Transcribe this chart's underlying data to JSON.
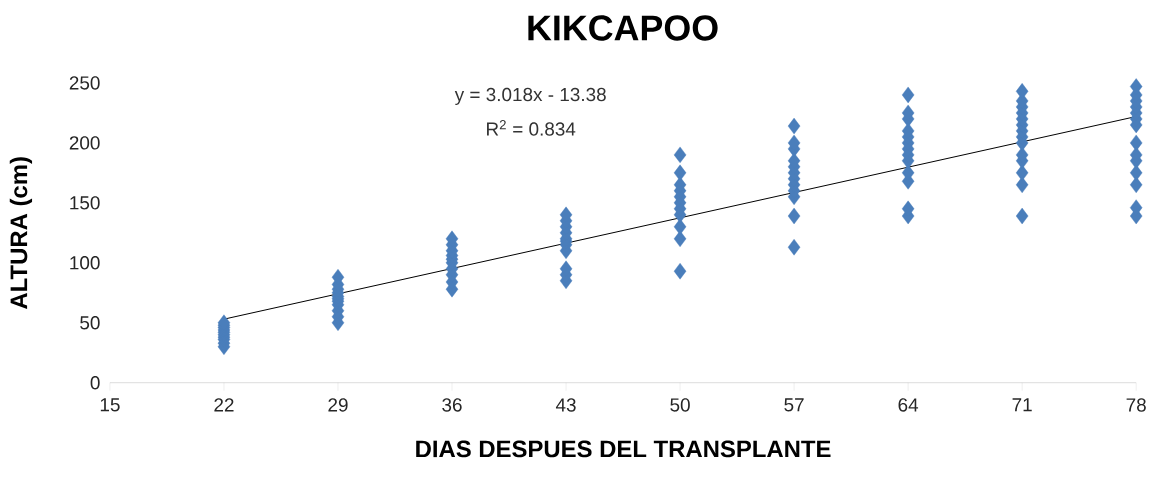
{
  "chart_data": {
    "type": "scatter",
    "title": "KIKCAPOO",
    "xlabel": "DIAS DESPUES DEL TRANSPLANTE",
    "ylabel": "ALTURA (cm)",
    "annotations": [
      "y = 3.018x - 13.38",
      "R$^{2}$ = 0.834"
    ],
    "xlim": [
      15,
      78
    ],
    "xticks": [
      15,
      22,
      29,
      36,
      43,
      50,
      57,
      64,
      71,
      78
    ],
    "ylim": [
      0,
      250
    ],
    "yticks": [
      0,
      50,
      100,
      150,
      200,
      250
    ],
    "marker": "diamond",
    "series": [
      {
        "color": "#4a7ebb",
        "x": [
          22,
          22,
          22,
          22,
          22,
          22,
          22,
          22,
          22,
          22,
          29,
          29,
          29,
          29,
          29,
          29,
          29,
          29,
          29,
          29,
          29,
          36,
          36,
          36,
          36,
          36,
          36,
          36,
          36,
          36,
          36,
          43,
          43,
          43,
          43,
          43,
          43,
          43,
          43,
          43,
          43,
          43,
          50,
          50,
          50,
          50,
          50,
          50,
          50,
          50,
          50,
          50,
          50,
          57,
          57,
          57,
          57,
          57,
          57,
          57,
          57,
          57,
          57,
          57,
          57,
          64,
          64,
          64,
          64,
          64,
          64,
          64,
          64,
          64,
          64,
          64,
          64,
          64,
          71,
          71,
          71,
          71,
          71,
          71,
          71,
          71,
          71,
          71,
          71,
          71,
          71,
          71,
          78,
          78,
          78,
          78,
          78,
          78,
          78,
          78,
          78,
          78,
          78,
          78,
          78,
          78
        ],
        "values": [
          30,
          33,
          36,
          38,
          40,
          42,
          44,
          46,
          48,
          50,
          50,
          55,
          60,
          65,
          68,
          70,
          72,
          75,
          78,
          82,
          88,
          78,
          84,
          90,
          95,
          100,
          103,
          106,
          110,
          115,
          120,
          85,
          90,
          95,
          110,
          115,
          118,
          120,
          125,
          130,
          135,
          140,
          93,
          120,
          130,
          140,
          145,
          150,
          155,
          160,
          165,
          175,
          190,
          113,
          139,
          155,
          160,
          165,
          170,
          175,
          180,
          185,
          195,
          200,
          214,
          139,
          145,
          168,
          175,
          185,
          190,
          195,
          200,
          205,
          210,
          220,
          225,
          240,
          139,
          165,
          175,
          185,
          190,
          200,
          205,
          210,
          215,
          220,
          225,
          230,
          235,
          243,
          139,
          146,
          165,
          175,
          185,
          190,
          200,
          215,
          220,
          225,
          230,
          235,
          240,
          247
        ]
      },
      {
        "type": "line",
        "color": "#000000",
        "marker": "none",
        "x": [
          22,
          78
        ],
        "values": [
          53.0,
          222.0
        ]
      }
    ]
  }
}
